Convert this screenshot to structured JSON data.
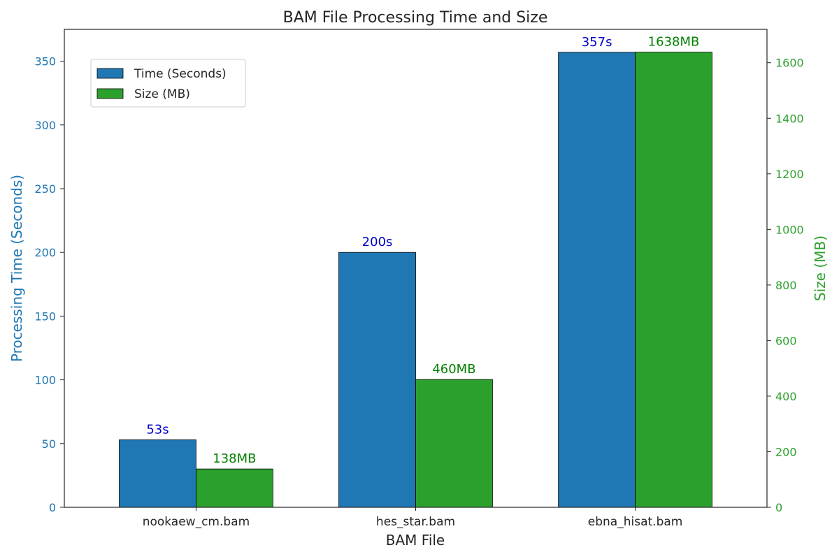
{
  "chart_data": {
    "type": "bar",
    "title": "BAM File Processing Time and Size",
    "xlabel": "BAM File",
    "ylabel_left": "Processing Time (Seconds)",
    "ylabel_right": "Size (MB)",
    "categories": [
      "nookaew_cm.bam",
      "hes_star.bam",
      "ebna_hisat.bam"
    ],
    "series": [
      {
        "name": "Time (Seconds)",
        "axis": "left",
        "values": [
          53,
          200,
          357
        ],
        "labels": [
          "53s",
          "200s",
          "357s"
        ],
        "color": "#1f77b4",
        "label_color": "#0000cc"
      },
      {
        "name": "Size (MB)",
        "axis": "right",
        "values": [
          138,
          460,
          1638
        ],
        "labels": [
          "138MB",
          "460MB",
          "1638MB"
        ],
        "color": "#2ca02c",
        "label_color": "#008000"
      }
    ],
    "ylim_left": [
      0,
      375
    ],
    "ylim_right": [
      0,
      1720
    ],
    "yticks_left": [
      0,
      50,
      100,
      150,
      200,
      250,
      300,
      350
    ],
    "yticks_right": [
      0,
      200,
      400,
      600,
      800,
      1000,
      1200,
      1400,
      1600
    ],
    "left_axis_color": "#1f77b4",
    "right_axis_color": "#2ca02c",
    "grid": false,
    "legend_position": "upper-left"
  }
}
